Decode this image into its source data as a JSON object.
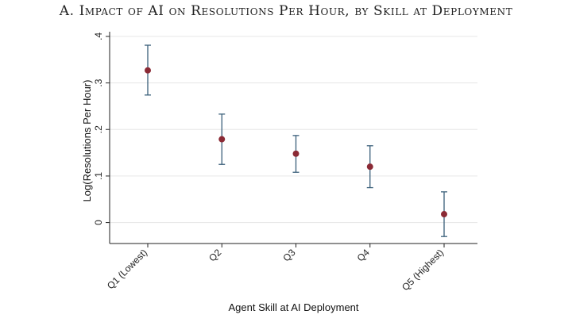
{
  "figure": {
    "title": "A. Impact of AI on Resolutions Per Hour, by Skill at Deployment"
  },
  "chart_data": {
    "type": "scatter",
    "title": "A. Impact of AI on Resolutions Per Hour, by Skill at Deployment",
    "xlabel": "Agent Skill at AI Deployment",
    "ylabel": "Log(Resolutions Per Hour)",
    "categories": [
      "Q1 (Lowest)",
      "Q2",
      "Q3",
      "Q4",
      "Q5 (Highest)"
    ],
    "values": [
      0.327,
      0.179,
      0.148,
      0.12,
      0.018
    ],
    "ci_low": [
      0.274,
      0.125,
      0.108,
      0.075,
      -0.03
    ],
    "ci_high": [
      0.381,
      0.233,
      0.187,
      0.165,
      0.066
    ],
    "ylim": [
      -0.045,
      0.41
    ],
    "yticks": [
      0,
      0.1,
      0.2,
      0.3,
      0.4
    ],
    "ytick_labels": [
      "0",
      ".1",
      ".2",
      ".3",
      ".4"
    ],
    "grid": true,
    "colors": {
      "marker": "#8b2a35",
      "errorbar": "#3a5f7a",
      "grid": "#e6e6e6",
      "axis": "#222222"
    }
  }
}
